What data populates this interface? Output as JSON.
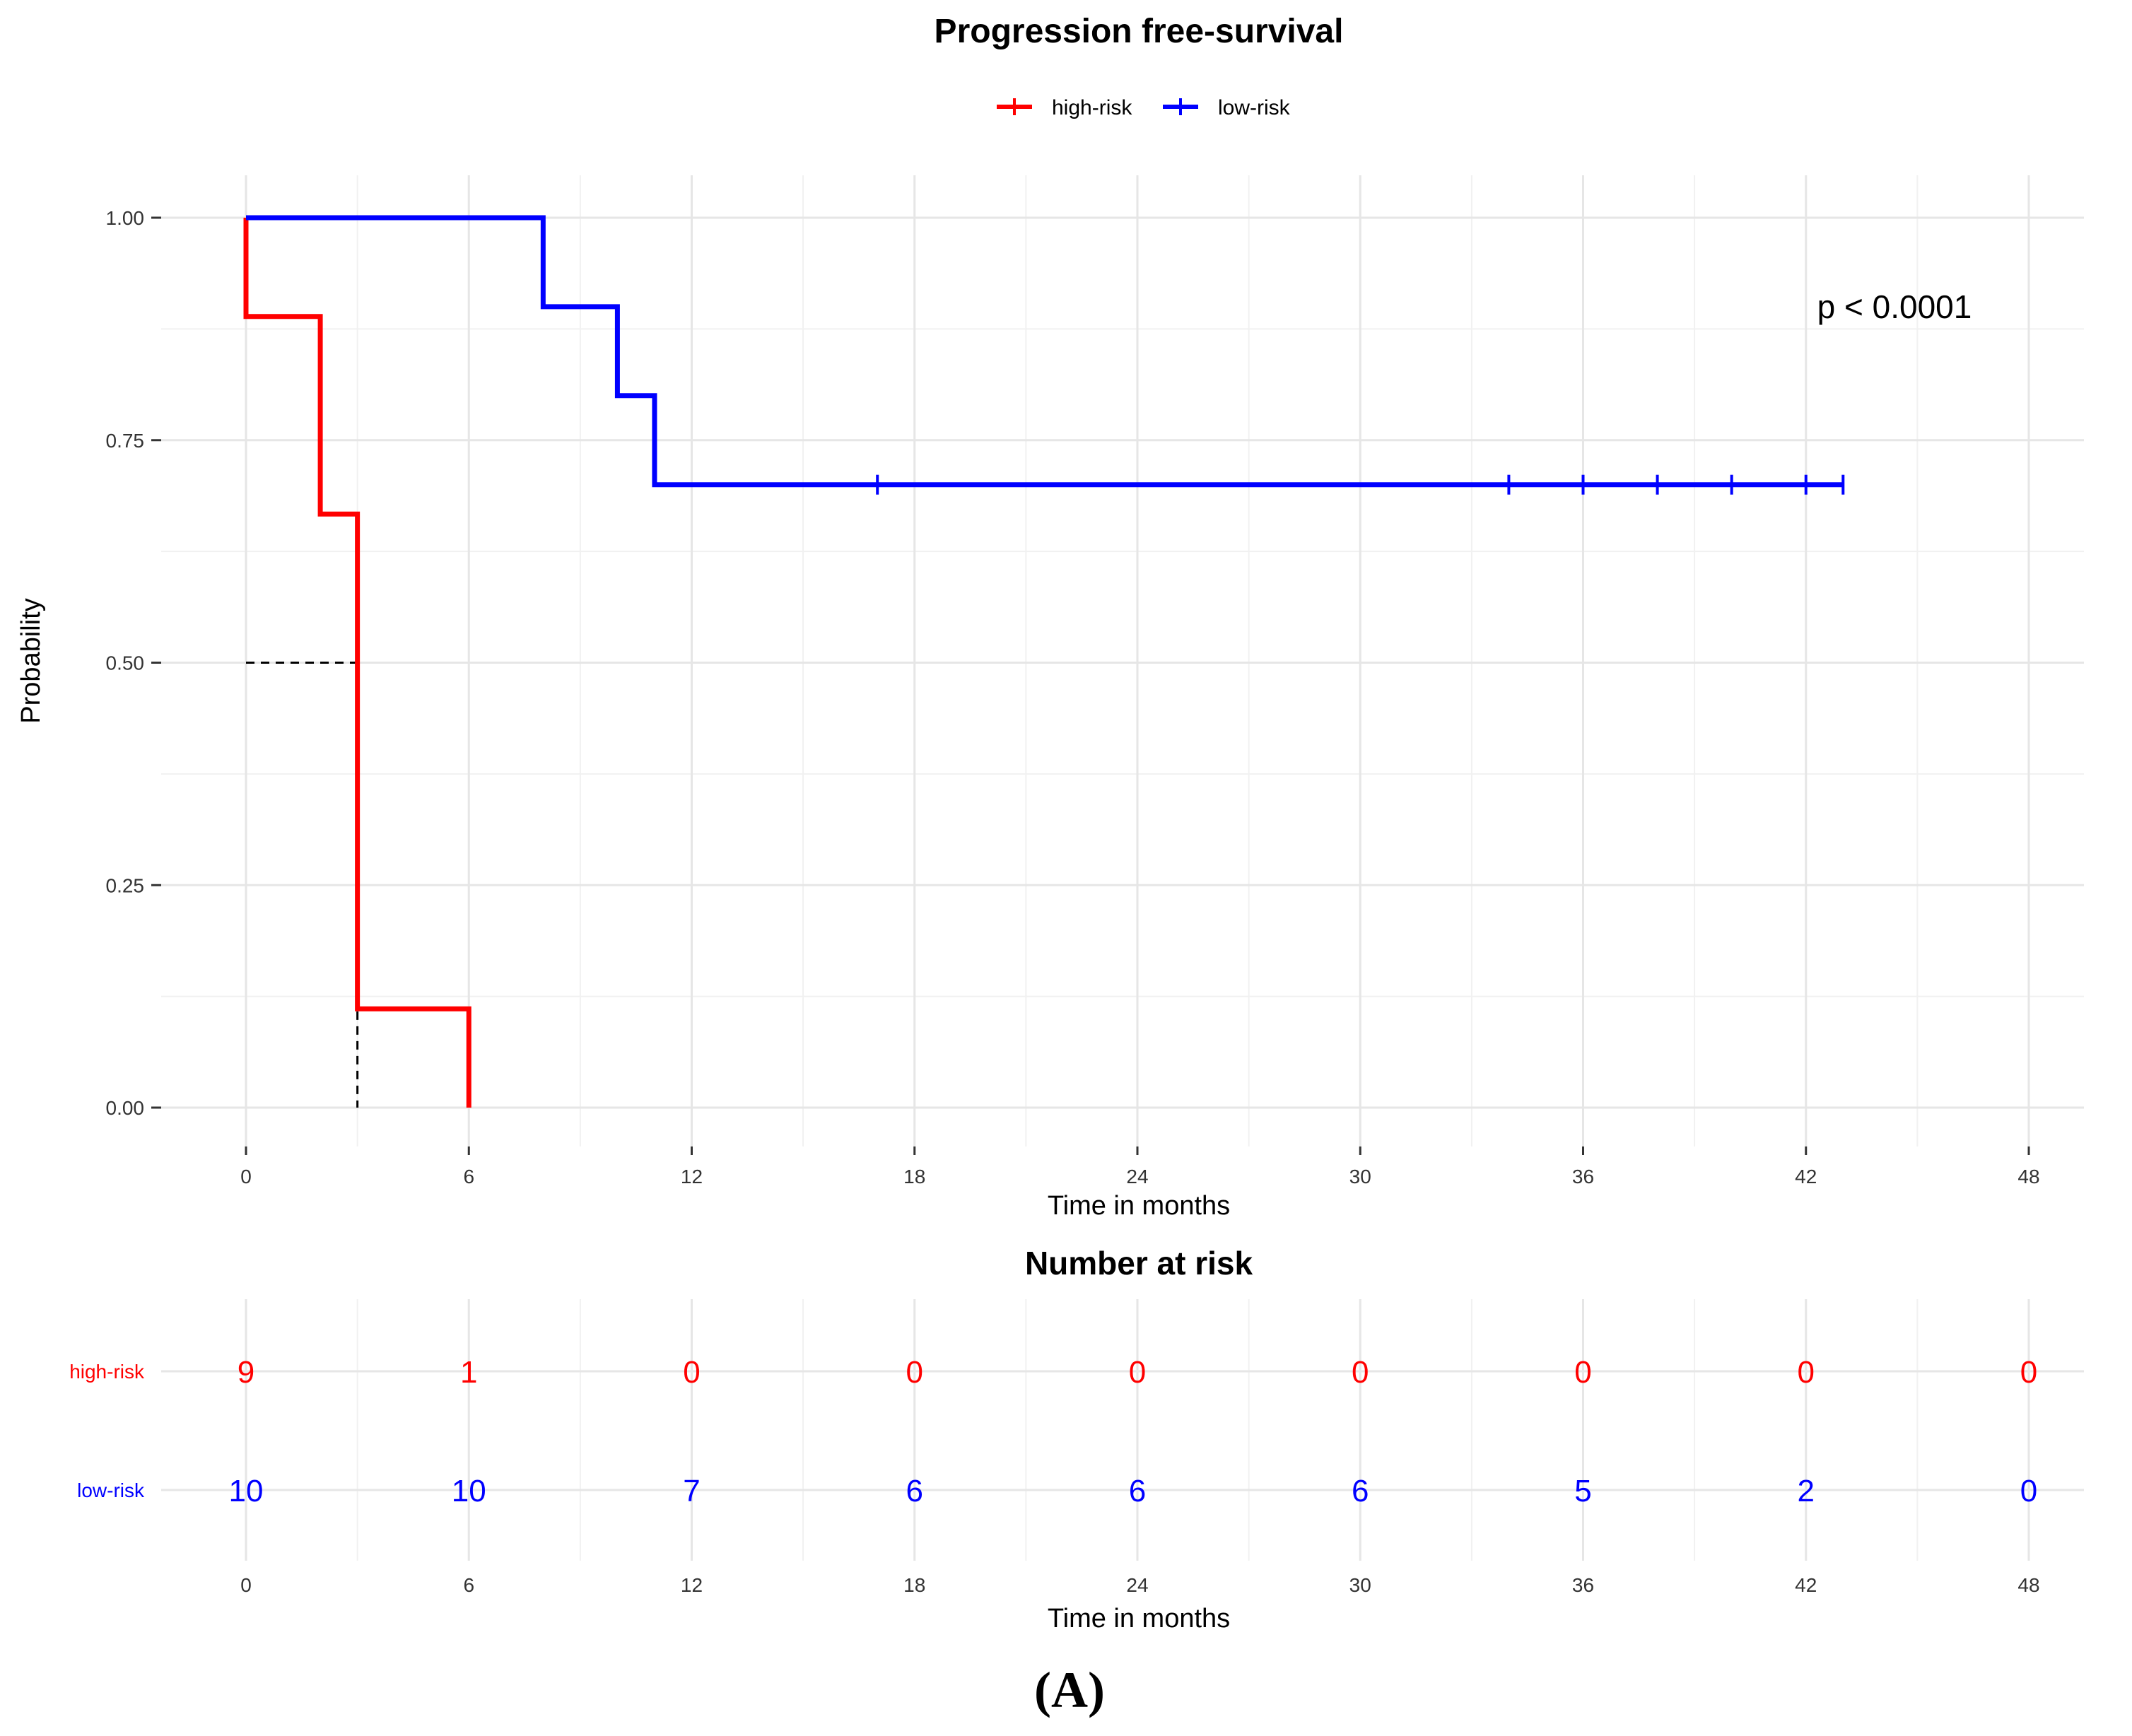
{
  "chart_data": [
    {
      "type": "line",
      "subtype": "kaplan-meier-step",
      "title": "Progression free-survival",
      "xlabel": "Time in months",
      "ylabel": "Probability",
      "xlim": [
        0,
        48
      ],
      "ylim": [
        0,
        1
      ],
      "x_ticks": [
        0,
        6,
        12,
        18,
        24,
        30,
        36,
        42,
        48
      ],
      "x_tick_labels": [
        "0",
        "6",
        "12",
        "18",
        "24",
        "30",
        "36",
        "42",
        "48"
      ],
      "y_ticks": [
        0,
        0.25,
        0.5,
        0.75,
        1
      ],
      "y_tick_labels": [
        "0.00",
        "0.25",
        "0.50",
        "0.75",
        "1.00"
      ],
      "grid": true,
      "legend_position": "top",
      "annotation": "p < 0.0001",
      "median_reference": {
        "y": 0.5,
        "x": 3
      },
      "series": [
        {
          "name": "high-risk",
          "color": "#ff0000",
          "steps": [
            {
              "x": 0,
              "y": 1.0
            },
            {
              "x": 0,
              "y": 0.889
            },
            {
              "x": 2,
              "y": 0.667
            },
            {
              "x": 3,
              "y": 0.111
            },
            {
              "x": 6,
              "y": 0.0
            }
          ],
          "censor_marks": []
        },
        {
          "name": "low-risk",
          "color": "#0000ff",
          "steps": [
            {
              "x": 0,
              "y": 1.0
            },
            {
              "x": 8,
              "y": 0.9
            },
            {
              "x": 10,
              "y": 0.8
            },
            {
              "x": 11,
              "y": 0.7
            }
          ],
          "end_x": 43,
          "censor_marks": [
            17,
            34,
            36,
            38,
            40,
            42,
            43
          ]
        }
      ]
    },
    {
      "type": "table",
      "title": "Number at risk",
      "xlabel": "Time in months",
      "xlim": [
        0,
        48
      ],
      "x_ticks": [
        0,
        6,
        12,
        18,
        24,
        30,
        36,
        42,
        48
      ],
      "x_tick_labels": [
        "0",
        "6",
        "12",
        "18",
        "24",
        "30",
        "36",
        "42",
        "48"
      ],
      "rows": [
        {
          "name": "high-risk",
          "color": "#ff0000",
          "values": [
            "9",
            "1",
            "0",
            "0",
            "0",
            "0",
            "0",
            "0",
            "0"
          ]
        },
        {
          "name": "low-risk",
          "color": "#0000ff",
          "values": [
            "10",
            "10",
            "7",
            "6",
            "6",
            "6",
            "5",
            "2",
            "0"
          ]
        }
      ]
    }
  ],
  "caption": "(A)"
}
